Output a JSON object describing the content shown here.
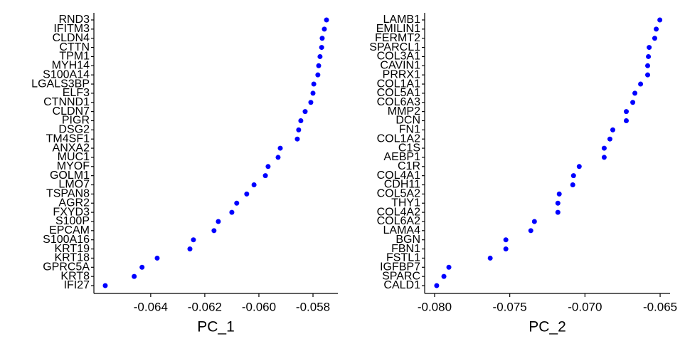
{
  "chart_data": [
    {
      "type": "dot",
      "xlabel": "PC_1",
      "color": "#0000ff",
      "categories": [
        "RND3",
        "IFITM3",
        "CLDN4",
        "CTTN",
        "TPM1",
        "MYH14",
        "S100A14",
        "LGALS3BP",
        "ELF3",
        "CTNND1",
        "CLDN7",
        "PIGR",
        "DSG2",
        "TM4SF1",
        "ANXA2",
        "MUC1",
        "MYOF",
        "GOLM1",
        "LMO7",
        "TSPAN8",
        "AGR2",
        "FXYD3",
        "S100P",
        "EPCAM",
        "S100A16",
        "KRT19",
        "KRT18",
        "GPRC5A",
        "KRT8",
        "IFI27"
      ],
      "values": [
        -0.0575,
        -0.05758,
        -0.05766,
        -0.05768,
        -0.05774,
        -0.05779,
        -0.05782,
        -0.05797,
        -0.058,
        -0.05808,
        -0.05829,
        -0.05845,
        -0.05853,
        -0.05858,
        -0.05921,
        -0.05929,
        -0.05966,
        -0.05976,
        -0.06018,
        -0.06045,
        -0.06082,
        -0.061,
        -0.0615,
        -0.06166,
        -0.06242,
        -0.06255,
        -0.06376,
        -0.06432,
        -0.06461,
        -0.06568
      ],
      "xlim": [
        -0.0661,
        -0.05708
      ],
      "xticks": [
        -0.064,
        -0.062,
        {
          "value": -0.06,
          "label": "-0.060"
        },
        -0.058
      ]
    },
    {
      "type": "dot",
      "xlabel": "PC_2",
      "color": "#0000ff",
      "categories": [
        "LAMB1",
        "EMILIN1",
        "FERMT2",
        "SPARCL1",
        "COL3A1",
        "CAVIN1",
        "PRRX1",
        "COL1A1",
        "COL5A1",
        "COL6A3",
        "MMP2",
        "DCN",
        "FN1",
        "COL1A2",
        "C1S",
        "AEBP1",
        "C1R",
        "COL4A1",
        "CDH11",
        "COL5A2",
        "THY1",
        "COL4A2",
        "COL6A2",
        "LAMA4",
        "BGN",
        "FBN1",
        "FSTL1",
        "IGFBP7",
        "SPARC",
        "CALD1"
      ],
      "values": [
        -0.06502,
        -0.06526,
        -0.06536,
        -0.06573,
        -0.06578,
        -0.06583,
        -0.06583,
        -0.0663,
        -0.06668,
        -0.06682,
        -0.06725,
        -0.06725,
        -0.06815,
        -0.06834,
        -0.06872,
        -0.06872,
        -0.07038,
        -0.07076,
        -0.07081,
        -0.07171,
        -0.0718,
        -0.0718,
        -0.07336,
        -0.0736,
        -0.07526,
        -0.07526,
        -0.0763,
        -0.07905,
        -0.07938,
        -0.07986
      ],
      "xlim": [
        -0.08066,
        -0.06434
      ],
      "xticks": [
        {
          "value": -0.08,
          "label": "-0.080"
        },
        -0.075,
        {
          "value": -0.07,
          "label": "-0.070"
        },
        -0.065
      ]
    }
  ]
}
